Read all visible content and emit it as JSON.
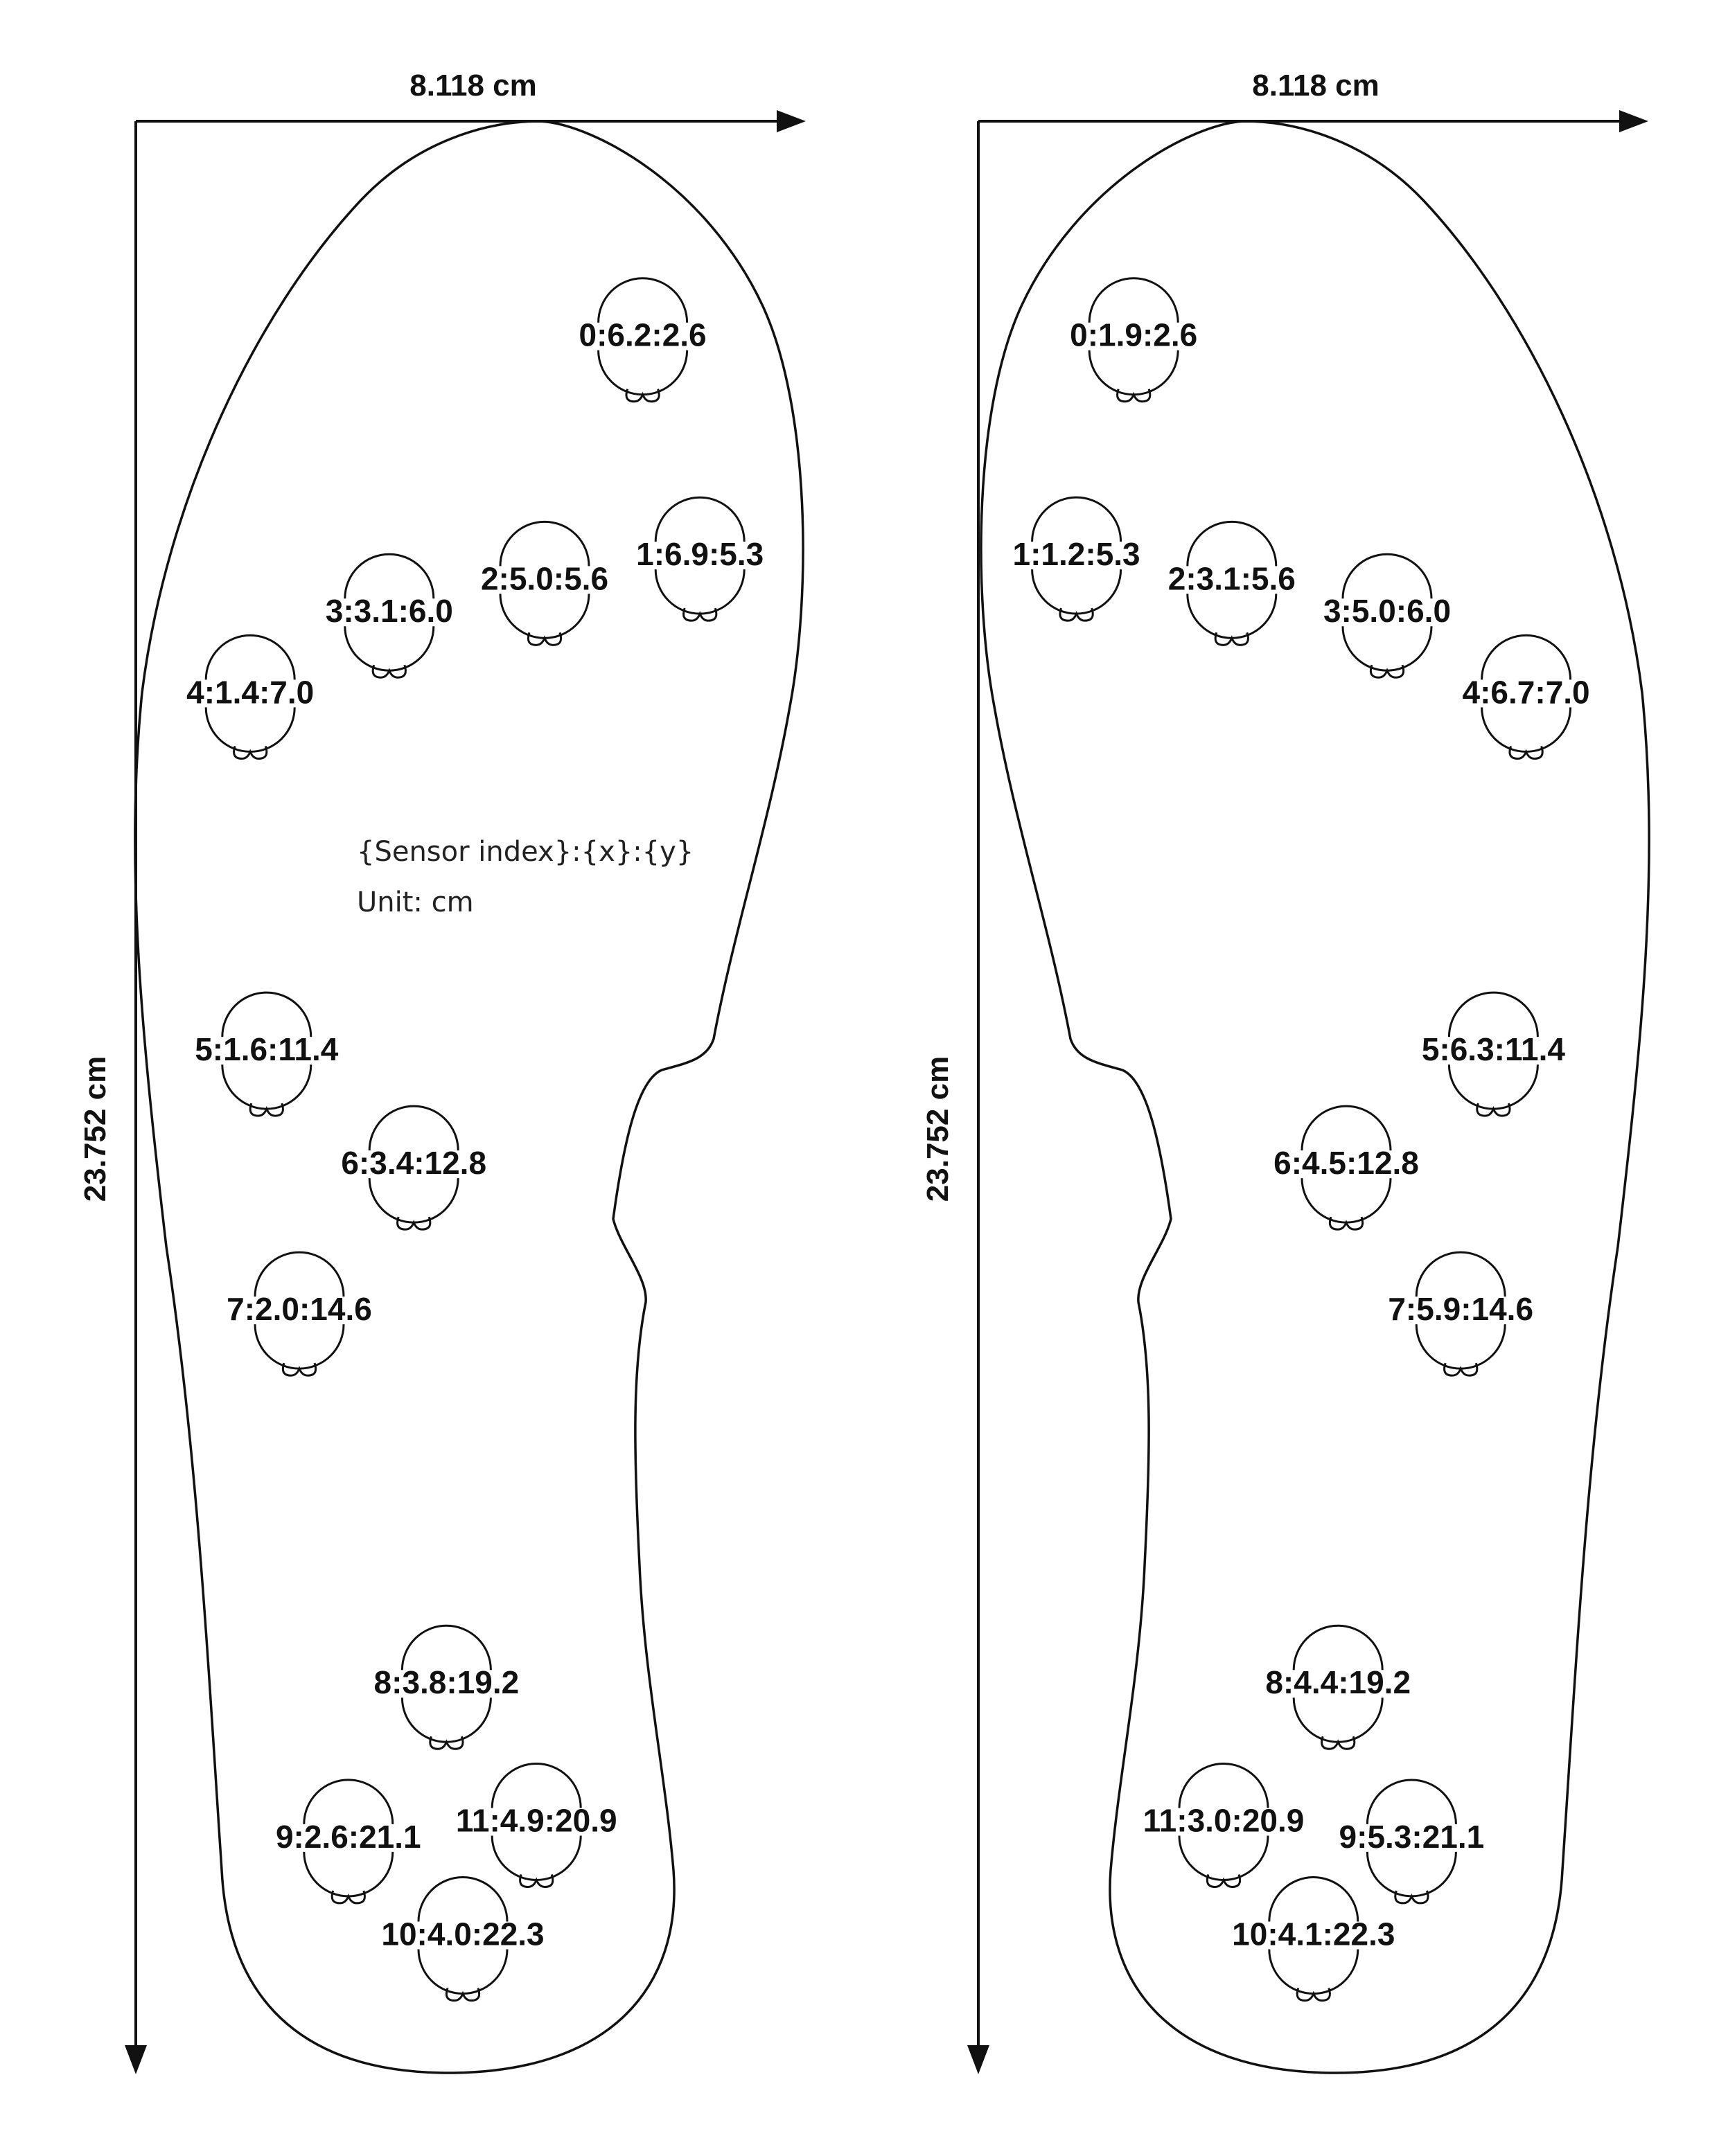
{
  "legend": {
    "line1": "{Sensor index}:{x}:{y}",
    "line2": "Unit: cm"
  },
  "insoles": [
    {
      "side": "left",
      "width_label": "8.118 cm",
      "height_label": "23.752 cm",
      "sensors": [
        {
          "index": 0,
          "x": 6.2,
          "y": 2.6,
          "label": "0:6.2:2.6"
        },
        {
          "index": 1,
          "x": 6.9,
          "y": 5.3,
          "label": "1:6.9:5.3"
        },
        {
          "index": 2,
          "x": 5.0,
          "y": 5.6,
          "label": "2:5.0:5.6"
        },
        {
          "index": 3,
          "x": 3.1,
          "y": 6.0,
          "label": "3:3.1:6.0"
        },
        {
          "index": 4,
          "x": 1.4,
          "y": 7.0,
          "label": "4:1.4:7.0"
        },
        {
          "index": 5,
          "x": 1.6,
          "y": 11.4,
          "label": "5:1.6:11.4"
        },
        {
          "index": 6,
          "x": 3.4,
          "y": 12.8,
          "label": "6:3.4:12.8"
        },
        {
          "index": 7,
          "x": 2.0,
          "y": 14.6,
          "label": "7:2.0:14.6"
        },
        {
          "index": 8,
          "x": 3.8,
          "y": 19.2,
          "label": "8:3.8:19.2"
        },
        {
          "index": 9,
          "x": 2.6,
          "y": 21.1,
          "label": "9:2.6:21.1"
        },
        {
          "index": 10,
          "x": 4.0,
          "y": 22.3,
          "label": "10:4.0:22.3"
        },
        {
          "index": 11,
          "x": 4.9,
          "y": 20.9,
          "label": "11:4.9:20.9"
        }
      ]
    },
    {
      "side": "right",
      "width_label": "8.118 cm",
      "height_label": "23.752 cm",
      "sensors": [
        {
          "index": 0,
          "x": 1.9,
          "y": 2.6,
          "label": "0:1.9:2.6"
        },
        {
          "index": 1,
          "x": 1.2,
          "y": 5.3,
          "label": "1:1.2:5.3"
        },
        {
          "index": 2,
          "x": 3.1,
          "y": 5.6,
          "label": "2:3.1:5.6"
        },
        {
          "index": 3,
          "x": 5.0,
          "y": 6.0,
          "label": "3:5.0:6.0"
        },
        {
          "index": 4,
          "x": 6.7,
          "y": 7.0,
          "label": "4:6.7:7.0"
        },
        {
          "index": 5,
          "x": 6.3,
          "y": 11.4,
          "label": "5:6.3:11.4"
        },
        {
          "index": 6,
          "x": 4.5,
          "y": 12.8,
          "label": "6:4.5:12.8"
        },
        {
          "index": 7,
          "x": 5.9,
          "y": 14.6,
          "label": "7:5.9:14.6"
        },
        {
          "index": 8,
          "x": 4.4,
          "y": 19.2,
          "label": "8:4.4:19.2"
        },
        {
          "index": 9,
          "x": 5.3,
          "y": 21.1,
          "label": "9:5.3:21.1"
        },
        {
          "index": 10,
          "x": 4.1,
          "y": 22.3,
          "label": "10:4.1:22.3"
        },
        {
          "index": 11,
          "x": 3.0,
          "y": 20.9,
          "label": "11:3.0:20.9"
        }
      ]
    }
  ]
}
